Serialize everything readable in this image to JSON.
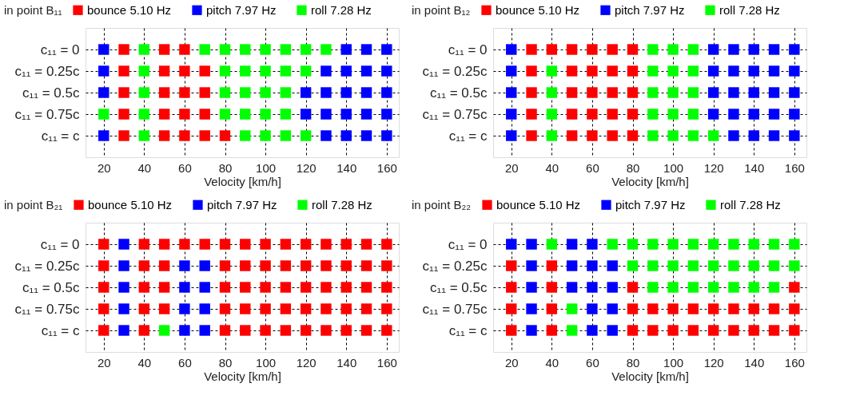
{
  "chart_data": [
    {
      "type": "scatter",
      "title": "in point B₁₁",
      "xlabel": "Velocity [km/h]",
      "xlim": [
        11,
        166
      ],
      "xticks": [
        20,
        40,
        60,
        80,
        100,
        120,
        140,
        160
      ],
      "ylim": [
        1.25,
        -0.25
      ],
      "yticks": [
        {
          "value": 0,
          "label": "c₁₁ = 0"
        },
        {
          "value": 0.25,
          "label": "c₁₁ = 0.25c"
        },
        {
          "value": 0.5,
          "label": "c₁₁ = 0.5c"
        },
        {
          "value": 0.75,
          "label": "c₁₁ = 0.75c"
        },
        {
          "value": 1,
          "label": "c₁₁ = c"
        }
      ],
      "grid": true,
      "legend": "top",
      "marker": "square",
      "series": [
        {
          "name": "bounce  5.10 Hz",
          "color": "#ff0000",
          "x": [
            30,
            50,
            60,
            30,
            50,
            60,
            70,
            30,
            50,
            60,
            70,
            30,
            50,
            60,
            70,
            30,
            50,
            60,
            70,
            80
          ],
          "values": [
            0,
            0,
            0,
            0.25,
            0.25,
            0.25,
            0.25,
            0.5,
            0.5,
            0.5,
            0.5,
            0.75,
            0.75,
            0.75,
            0.75,
            1,
            1,
            1,
            1,
            1
          ]
        },
        {
          "name": "pitch  7.97 Hz",
          "color": "#0000ff",
          "x": [
            20,
            140,
            150,
            160,
            20,
            130,
            140,
            150,
            160,
            20,
            120,
            130,
            140,
            150,
            160,
            120,
            130,
            140,
            150,
            160,
            20,
            130,
            140,
            150,
            160
          ],
          "values": [
            0,
            0,
            0,
            0,
            0.25,
            0.25,
            0.25,
            0.25,
            0.25,
            0.5,
            0.5,
            0.5,
            0.5,
            0.5,
            0.5,
            0.75,
            0.75,
            0.75,
            0.75,
            0.75,
            1,
            1,
            1,
            1,
            1
          ]
        },
        {
          "name": "roll  7.28 Hz",
          "color": "#00ff00",
          "x": [
            40,
            70,
            80,
            90,
            100,
            110,
            120,
            130,
            40,
            80,
            90,
            100,
            110,
            120,
            40,
            80,
            90,
            100,
            110,
            20,
            40,
            80,
            90,
            100,
            110,
            40,
            90,
            100,
            110,
            120
          ],
          "values": [
            0,
            0,
            0,
            0,
            0,
            0,
            0,
            0,
            0.25,
            0.25,
            0.25,
            0.25,
            0.25,
            0.25,
            0.5,
            0.5,
            0.5,
            0.5,
            0.5,
            0.75,
            0.75,
            0.75,
            0.75,
            0.75,
            0.75,
            1,
            1,
            1,
            1,
            1
          ]
        }
      ]
    },
    {
      "type": "scatter",
      "title": "in point B₁₂",
      "xlabel": "Velocity [km/h]",
      "xlim": [
        11,
        166
      ],
      "xticks": [
        20,
        40,
        60,
        80,
        100,
        120,
        140,
        160
      ],
      "ylim": [
        1.25,
        -0.25
      ],
      "yticks": [
        {
          "value": 0,
          "label": "c₁₁ = 0"
        },
        {
          "value": 0.25,
          "label": "c₁₁ = 0.25c"
        },
        {
          "value": 0.5,
          "label": "c₁₁ = 0.5c"
        },
        {
          "value": 0.75,
          "label": "c₁₁ = 0.75c"
        },
        {
          "value": 1,
          "label": "c₁₁ = c"
        }
      ],
      "grid": true,
      "legend": "top",
      "marker": "square",
      "series": [
        {
          "name": "bounce  5.10 Hz",
          "color": "#ff0000",
          "x": [
            30,
            40,
            50,
            60,
            70,
            80,
            30,
            50,
            60,
            70,
            80,
            30,
            50,
            60,
            70,
            80,
            30,
            50,
            60,
            70,
            80,
            30,
            50,
            60,
            70,
            80
          ],
          "values": [
            0,
            0,
            0,
            0,
            0,
            0,
            0.25,
            0.25,
            0.25,
            0.25,
            0.25,
            0.5,
            0.5,
            0.5,
            0.5,
            0.5,
            0.75,
            0.75,
            0.75,
            0.75,
            0.75,
            1,
            1,
            1,
            1,
            1
          ]
        },
        {
          "name": "pitch  7.97 Hz",
          "color": "#0000ff",
          "x": [
            20,
            120,
            130,
            140,
            150,
            160,
            20,
            120,
            130,
            140,
            150,
            160,
            20,
            120,
            130,
            140,
            150,
            160,
            20,
            120,
            130,
            140,
            150,
            160,
            20,
            130,
            140,
            150,
            160
          ],
          "values": [
            0,
            0,
            0,
            0,
            0,
            0,
            0.25,
            0.25,
            0.25,
            0.25,
            0.25,
            0.25,
            0.5,
            0.5,
            0.5,
            0.5,
            0.5,
            0.5,
            0.75,
            0.75,
            0.75,
            0.75,
            0.75,
            0.75,
            1,
            1,
            1,
            1,
            1
          ]
        },
        {
          "name": "roll  7.28 Hz",
          "color": "#00ff00",
          "x": [
            90,
            100,
            110,
            40,
            90,
            100,
            110,
            40,
            90,
            100,
            110,
            40,
            90,
            100,
            110,
            40,
            90,
            100,
            110,
            120
          ],
          "values": [
            0,
            0,
            0,
            0.25,
            0.25,
            0.25,
            0.25,
            0.5,
            0.5,
            0.5,
            0.5,
            0.75,
            0.75,
            0.75,
            0.75,
            1,
            1,
            1,
            1,
            1
          ]
        }
      ]
    },
    {
      "type": "scatter",
      "title": "in point B₂₁",
      "xlabel": "Velocity [km/h]",
      "xlim": [
        11,
        166
      ],
      "xticks": [
        20,
        40,
        60,
        80,
        100,
        120,
        140,
        160
      ],
      "ylim": [
        1.25,
        -0.25
      ],
      "yticks": [
        {
          "value": 0,
          "label": "c₁₁ = 0"
        },
        {
          "value": 0.25,
          "label": "c₁₁ = 0.25c"
        },
        {
          "value": 0.5,
          "label": "c₁₁ = 0.5c"
        },
        {
          "value": 0.75,
          "label": "c₁₁ = 0.75c"
        },
        {
          "value": 1,
          "label": "c₁₁ = c"
        }
      ],
      "grid": true,
      "legend": "top",
      "marker": "square",
      "series": [
        {
          "name": "bounce  5.10 Hz",
          "color": "#ff0000",
          "x": [
            20,
            40,
            50,
            60,
            70,
            80,
            90,
            100,
            110,
            120,
            130,
            140,
            150,
            160,
            20,
            40,
            50,
            80,
            90,
            100,
            110,
            120,
            130,
            140,
            150,
            160,
            20,
            40,
            50,
            80,
            90,
            100,
            110,
            120,
            130,
            140,
            150,
            160,
            20,
            40,
            50,
            80,
            90,
            100,
            110,
            120,
            130,
            140,
            150,
            160,
            20,
            40,
            80,
            90,
            100,
            110,
            120,
            130,
            140,
            150,
            160
          ],
          "values": [
            0,
            0,
            0,
            0,
            0,
            0,
            0,
            0,
            0,
            0,
            0,
            0,
            0,
            0,
            0.25,
            0.25,
            0.25,
            0.25,
            0.25,
            0.25,
            0.25,
            0.25,
            0.25,
            0.25,
            0.25,
            0.25,
            0.5,
            0.5,
            0.5,
            0.5,
            0.5,
            0.5,
            0.5,
            0.5,
            0.5,
            0.5,
            0.5,
            0.5,
            0.75,
            0.75,
            0.75,
            0.75,
            0.75,
            0.75,
            0.75,
            0.75,
            0.75,
            0.75,
            0.75,
            0.75,
            1,
            1,
            1,
            1,
            1,
            1,
            1,
            1,
            1,
            1,
            1
          ]
        },
        {
          "name": "pitch  7.97 Hz",
          "color": "#0000ff",
          "x": [
            30,
            30,
            60,
            70,
            30,
            60,
            70,
            30,
            60,
            70,
            30,
            60,
            70
          ],
          "values": [
            0,
            0.25,
            0.25,
            0.25,
            0.5,
            0.5,
            0.5,
            0.75,
            0.75,
            0.75,
            1,
            1,
            1
          ]
        },
        {
          "name": "roll  7.28 Hz",
          "color": "#00ff00",
          "x": [
            50
          ],
          "values": [
            1
          ]
        }
      ]
    },
    {
      "type": "scatter",
      "title": "in point B₂₂",
      "xlabel": "Velocity [km/h]",
      "xlim": [
        11,
        166
      ],
      "xticks": [
        20,
        40,
        60,
        80,
        100,
        120,
        140,
        160
      ],
      "ylim": [
        1.25,
        -0.25
      ],
      "yticks": [
        {
          "value": 0,
          "label": "c₁₁ = 0"
        },
        {
          "value": 0.25,
          "label": "c₁₁ = 0.25c"
        },
        {
          "value": 0.5,
          "label": "c₁₁ = 0.5c"
        },
        {
          "value": 0.75,
          "label": "c₁₁ = 0.75c"
        },
        {
          "value": 1,
          "label": "c₁₁ = c"
        }
      ],
      "grid": true,
      "legend": "top",
      "marker": "square",
      "series": [
        {
          "name": "bounce  5.10 Hz",
          "color": "#ff0000",
          "x": [
            20,
            40,
            20,
            40,
            80,
            160,
            20,
            40,
            80,
            90,
            100,
            110,
            120,
            130,
            140,
            150,
            160,
            20,
            40,
            80,
            90,
            100,
            110,
            120,
            130,
            140,
            150,
            160
          ],
          "values": [
            0.25,
            0.25,
            0.5,
            0.5,
            0.5,
            0.5,
            0.75,
            0.75,
            0.75,
            0.75,
            0.75,
            0.75,
            0.75,
            0.75,
            0.75,
            0.75,
            0.75,
            1,
            1,
            1,
            1,
            1,
            1,
            1,
            1,
            1,
            1,
            1
          ]
        },
        {
          "name": "pitch  7.97 Hz",
          "color": "#0000ff",
          "x": [
            20,
            30,
            50,
            60,
            30,
            50,
            60,
            70,
            30,
            50,
            60,
            70,
            30,
            60,
            70,
            30,
            60,
            70
          ],
          "values": [
            0,
            0,
            0,
            0,
            0.25,
            0.25,
            0.25,
            0.25,
            0.5,
            0.5,
            0.5,
            0.5,
            0.75,
            0.75,
            0.75,
            1,
            1,
            1
          ]
        },
        {
          "name": "roll  7.28 Hz",
          "color": "#00ff00",
          "x": [
            40,
            70,
            80,
            90,
            100,
            110,
            120,
            130,
            140,
            150,
            160,
            80,
            90,
            100,
            110,
            120,
            130,
            140,
            150,
            160,
            90,
            100,
            110,
            120,
            130,
            140,
            150,
            50,
            50
          ],
          "values": [
            0,
            0,
            0,
            0,
            0,
            0,
            0,
            0,
            0,
            0,
            0,
            0.25,
            0.25,
            0.25,
            0.25,
            0.25,
            0.25,
            0.25,
            0.25,
            0.25,
            0.5,
            0.5,
            0.5,
            0.5,
            0.5,
            0.5,
            0.5,
            0.75,
            1
          ]
        }
      ]
    }
  ]
}
